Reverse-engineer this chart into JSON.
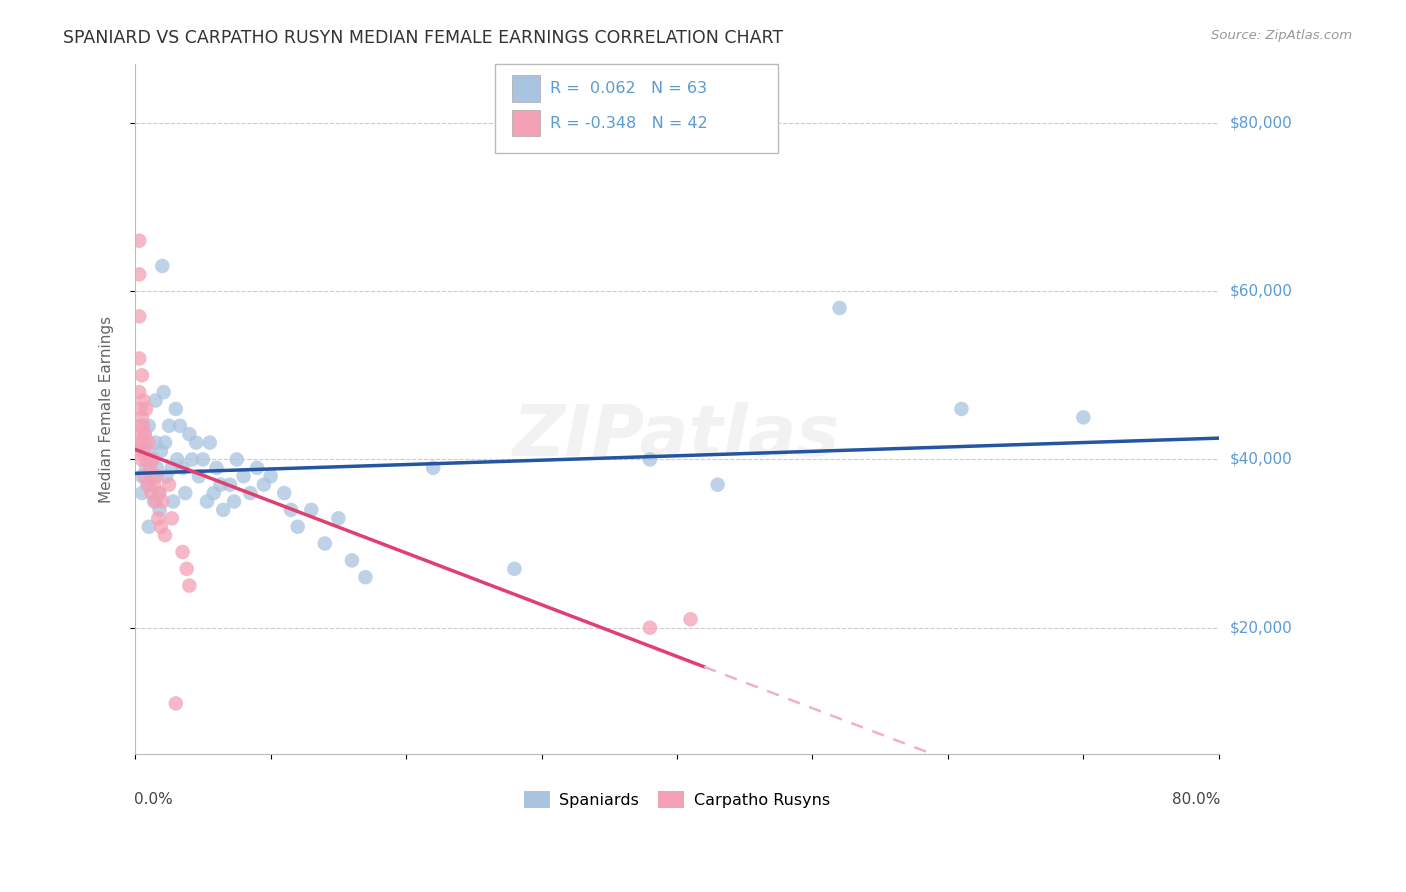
{
  "title": "SPANIARD VS CARPATHO RUSYN MEDIAN FEMALE EARNINGS CORRELATION CHART",
  "source": "Source: ZipAtlas.com",
  "ylabel": "Median Female Earnings",
  "ytick_labels": [
    "$20,000",
    "$40,000",
    "$60,000",
    "$80,000"
  ],
  "ytick_values": [
    20000,
    40000,
    60000,
    80000
  ],
  "ymin": 5000,
  "ymax": 87000,
  "xmin": 0.0,
  "xmax": 0.8,
  "spaniard_color": "#a8c4e0",
  "carpatho_color": "#f4a0b5",
  "spaniard_line_color": "#2355a0",
  "carpatho_line_color": "#e04070",
  "carpatho_dashed_color": "#f0b0c8",
  "background_color": "#ffffff",
  "grid_color": "#cccccc",
  "title_color": "#333333",
  "right_label_color": "#5b9bd5",
  "spaniards_x": [
    0.005,
    0.005,
    0.007,
    0.008,
    0.009,
    0.01,
    0.01,
    0.01,
    0.012,
    0.013,
    0.014,
    0.015,
    0.015,
    0.016,
    0.017,
    0.018,
    0.019,
    0.02,
    0.021,
    0.022,
    0.023,
    0.025,
    0.027,
    0.028,
    0.03,
    0.031,
    0.033,
    0.035,
    0.037,
    0.04,
    0.042,
    0.045,
    0.047,
    0.05,
    0.053,
    0.055,
    0.058,
    0.06,
    0.063,
    0.065,
    0.07,
    0.073,
    0.075,
    0.08,
    0.085,
    0.09,
    0.095,
    0.1,
    0.11,
    0.115,
    0.12,
    0.13,
    0.14,
    0.15,
    0.16,
    0.17,
    0.22,
    0.28,
    0.38,
    0.43,
    0.52,
    0.61,
    0.7
  ],
  "spaniards_y": [
    38000,
    36000,
    43000,
    39000,
    41000,
    44000,
    37000,
    32000,
    40000,
    38000,
    35000,
    47000,
    42000,
    39000,
    36000,
    34000,
    41000,
    63000,
    48000,
    42000,
    38000,
    44000,
    39000,
    35000,
    46000,
    40000,
    44000,
    39000,
    36000,
    43000,
    40000,
    42000,
    38000,
    40000,
    35000,
    42000,
    36000,
    39000,
    37000,
    34000,
    37000,
    35000,
    40000,
    38000,
    36000,
    39000,
    37000,
    38000,
    36000,
    34000,
    32000,
    34000,
    30000,
    33000,
    28000,
    26000,
    39000,
    27000,
    40000,
    37000,
    58000,
    46000,
    45000
  ],
  "carpatho_x": [
    0.003,
    0.003,
    0.003,
    0.003,
    0.003,
    0.004,
    0.004,
    0.004,
    0.004,
    0.004,
    0.005,
    0.005,
    0.005,
    0.005,
    0.006,
    0.006,
    0.006,
    0.007,
    0.007,
    0.008,
    0.008,
    0.009,
    0.01,
    0.011,
    0.012,
    0.013,
    0.014,
    0.015,
    0.016,
    0.017,
    0.018,
    0.019,
    0.02,
    0.022,
    0.025,
    0.027,
    0.03,
    0.035,
    0.038,
    0.04,
    0.38,
    0.41
  ],
  "carpatho_y": [
    66000,
    62000,
    57000,
    52000,
    48000,
    46000,
    44000,
    43000,
    42000,
    41000,
    50000,
    45000,
    42000,
    40000,
    47000,
    44000,
    41000,
    43000,
    38000,
    46000,
    40000,
    37000,
    42000,
    39000,
    36000,
    40000,
    37000,
    35000,
    38000,
    33000,
    36000,
    32000,
    35000,
    31000,
    37000,
    33000,
    11000,
    29000,
    27000,
    25000,
    20000,
    21000
  ]
}
